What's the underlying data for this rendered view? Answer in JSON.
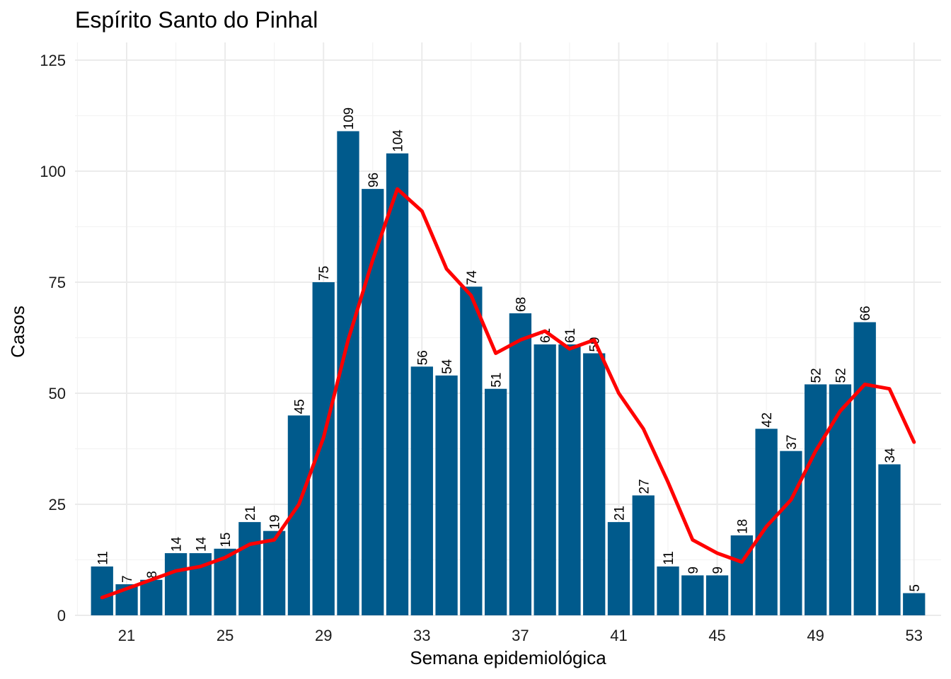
{
  "chart_data": {
    "type": "bar",
    "title": "Espírito Santo do Pinhal",
    "xlabel": "Semana epidemiológica",
    "ylabel": "Casos",
    "x": [
      20,
      21,
      22,
      23,
      24,
      25,
      26,
      27,
      28,
      29,
      30,
      31,
      32,
      33,
      34,
      35,
      36,
      37,
      38,
      39,
      40,
      41,
      42,
      43,
      44,
      45,
      46,
      47,
      48,
      49,
      50,
      51,
      52,
      53
    ],
    "values": [
      11,
      7,
      8,
      14,
      14,
      15,
      21,
      19,
      45,
      75,
      109,
      96,
      104,
      56,
      54,
      74,
      51,
      68,
      61,
      61,
      59,
      21,
      27,
      11,
      9,
      9,
      18,
      42,
      37,
      52,
      52,
      66,
      34,
      5
    ],
    "line": [
      4,
      6,
      8,
      10,
      11,
      13,
      16,
      17,
      25,
      40,
      62,
      80,
      96,
      91,
      78,
      72,
      59,
      62,
      64,
      60,
      62,
      50,
      42,
      30,
      17,
      14,
      12,
      20,
      26,
      37,
      46,
      52,
      51,
      39
    ],
    "xticks": [
      21,
      25,
      29,
      33,
      37,
      41,
      45,
      49,
      53
    ],
    "yticks": [
      0,
      25,
      50,
      75,
      100,
      125
    ],
    "xlim": [
      18.9,
      54.1
    ],
    "ylim": [
      0,
      125
    ],
    "bar_color": "#005a8c",
    "line_color": "#ff0000",
    "grid": true,
    "legend": "none"
  }
}
